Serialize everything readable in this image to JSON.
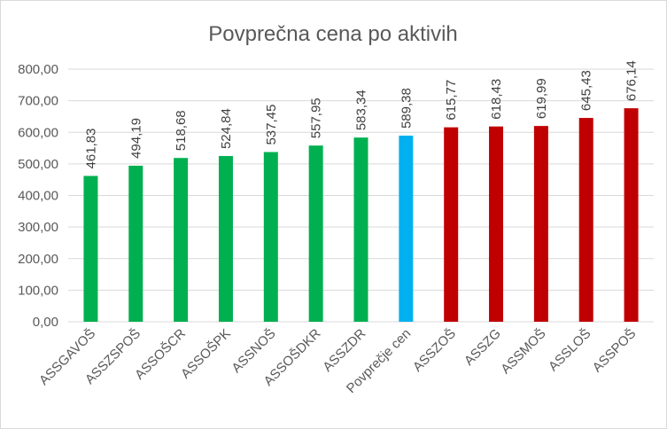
{
  "chart_data": {
    "type": "bar",
    "title": "Povprečna cena po aktivih",
    "xlabel": "",
    "ylabel": "",
    "ylim": [
      0,
      800
    ],
    "y_ticks": [
      "0,00",
      "100,00",
      "200,00",
      "300,00",
      "400,00",
      "500,00",
      "600,00",
      "700,00",
      "800,00"
    ],
    "grid": true,
    "legend": "none",
    "categories": [
      "ASSGAVOŠ",
      "ASSZSPOŠ",
      "ASSOŠCR",
      "ASSOŠPK",
      "ASSNOŠ",
      "ASSOŠDKR",
      "ASSZDR",
      "Povprečje cen",
      "ASSZOŠ",
      "ASSZG",
      "ASSMOŠ",
      "ASSLOŠ",
      "ASSPOŠ"
    ],
    "values": [
      461.83,
      494.19,
      518.68,
      524.84,
      537.45,
      557.95,
      583.34,
      589.38,
      615.77,
      618.43,
      619.99,
      645.43,
      676.14
    ],
    "value_labels": [
      "461,83",
      "494,19",
      "518,68",
      "524,84",
      "537,45",
      "557,95",
      "583,34",
      "589,38",
      "615,77",
      "618,43",
      "619,99",
      "645,43",
      "676,14"
    ],
    "bar_colors": [
      "#00b050",
      "#00b050",
      "#00b050",
      "#00b050",
      "#00b050",
      "#00b050",
      "#00b050",
      "#00b0f0",
      "#c00000",
      "#c00000",
      "#c00000",
      "#c00000",
      "#c00000"
    ],
    "colors": {
      "below_average": "#00b050",
      "average": "#00b0f0",
      "above_average": "#c00000",
      "gridline": "#d9d9d9",
      "text": "#595959"
    }
  }
}
